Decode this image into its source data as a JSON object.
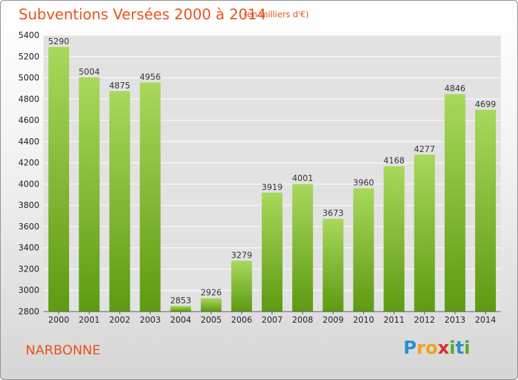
{
  "chart_data": {
    "type": "bar",
    "title": "Subventions Versées 2000 à 2014",
    "subtitle": "(en milliers d'€)",
    "categories": [
      "2000",
      "2001",
      "2002",
      "2003",
      "2004",
      "2005",
      "2006",
      "2007",
      "2008",
      "2009",
      "2010",
      "2011",
      "2012",
      "2013",
      "2014"
    ],
    "values": [
      5290,
      5004,
      4875,
      4956,
      2853,
      2926,
      3279,
      3919,
      4001,
      3673,
      3960,
      4168,
      4277,
      4846,
      4699
    ],
    "ylim": [
      2800,
      5400
    ],
    "yticks": [
      2800,
      3000,
      3200,
      3400,
      3600,
      3800,
      4000,
      4200,
      4400,
      4600,
      4800,
      5000,
      5200,
      5400
    ],
    "grid": true,
    "bar_color_top": "#a8d85c",
    "bar_color_bottom": "#5e9a12"
  },
  "footer": {
    "city": "NARBONNE",
    "logo_letters": [
      "P",
      "r",
      "o",
      "x",
      "i",
      "t",
      "i"
    ],
    "logo_colors": [
      "#2a8fd6",
      "#f0a21b",
      "#f0a21b",
      "#e0302a",
      "#5aaa2a",
      "#2a8fd6",
      "#5aaa2a"
    ]
  }
}
